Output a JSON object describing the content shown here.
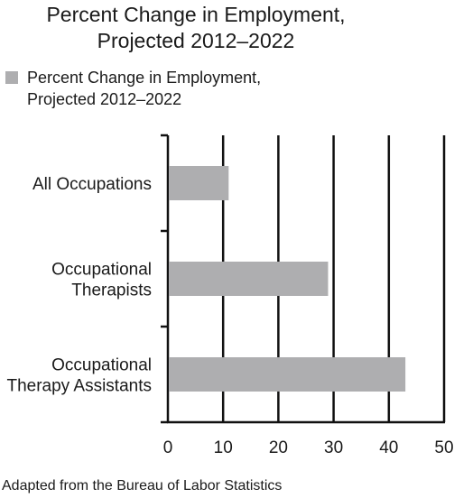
{
  "chart_data": {
    "type": "bar",
    "orientation": "horizontal",
    "title": [
      "Percent Change in Employment,",
      "Projected 2012–2022"
    ],
    "categories": [
      [
        "All Occupations"
      ],
      [
        "Occupational",
        "Therapists"
      ],
      [
        "Occupational",
        "Therapy Assistants"
      ]
    ],
    "series": [
      {
        "name": [
          "Percent Change in Employment,",
          "Projected 2012–2022"
        ],
        "values": [
          11,
          29,
          43
        ],
        "color": "#aeaeb0"
      }
    ],
    "xlim": [
      0,
      50
    ],
    "xticks": [
      "0",
      "10",
      "20",
      "30",
      "40",
      "50"
    ],
    "grid": true,
    "legend": "top-left",
    "source": "Adapted from the Bureau of Labor Statistics"
  }
}
